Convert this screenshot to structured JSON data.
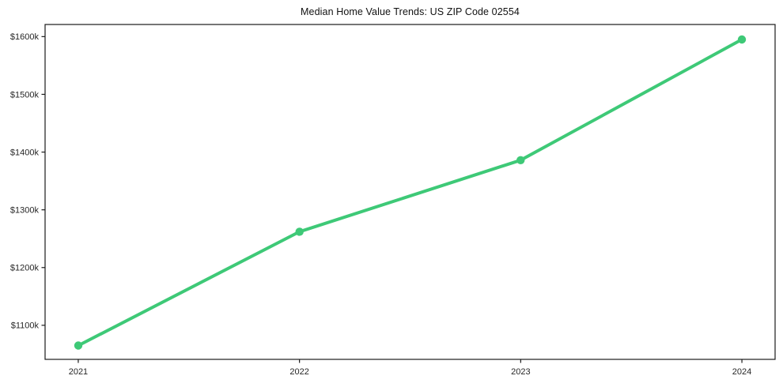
{
  "chart_data": {
    "type": "line",
    "title": "Median Home Value Trends: US ZIP Code 02554",
    "xlabel": "",
    "ylabel": "",
    "x": [
      2021,
      2022,
      2023,
      2024
    ],
    "series": [
      {
        "name": "Median home value",
        "values_usd_k": [
          1065,
          1262,
          1386,
          1595
        ]
      }
    ],
    "xticks": [
      {
        "value": 2021,
        "label": "2021"
      },
      {
        "value": 2022,
        "label": "2022"
      },
      {
        "value": 2023,
        "label": "2023"
      },
      {
        "value": 2024,
        "label": "2024"
      }
    ],
    "yticks": [
      {
        "value": 1100,
        "label": "$1100k"
      },
      {
        "value": 1200,
        "label": "$1200k"
      },
      {
        "value": 1300,
        "label": "$1300k"
      },
      {
        "value": 1400,
        "label": "$1400k"
      },
      {
        "value": 1500,
        "label": "$1500k"
      },
      {
        "value": 1600,
        "label": "$1600k"
      }
    ],
    "xlim": [
      2020.85,
      2024.15
    ],
    "ylim_usd_k": [
      1041,
      1621
    ],
    "grid": false,
    "legend": "none",
    "marker": "circle",
    "line_color": "#3ec977",
    "frame_color": "#1a1a1a",
    "text_color": "#262626",
    "background_color": "#ffffff"
  }
}
